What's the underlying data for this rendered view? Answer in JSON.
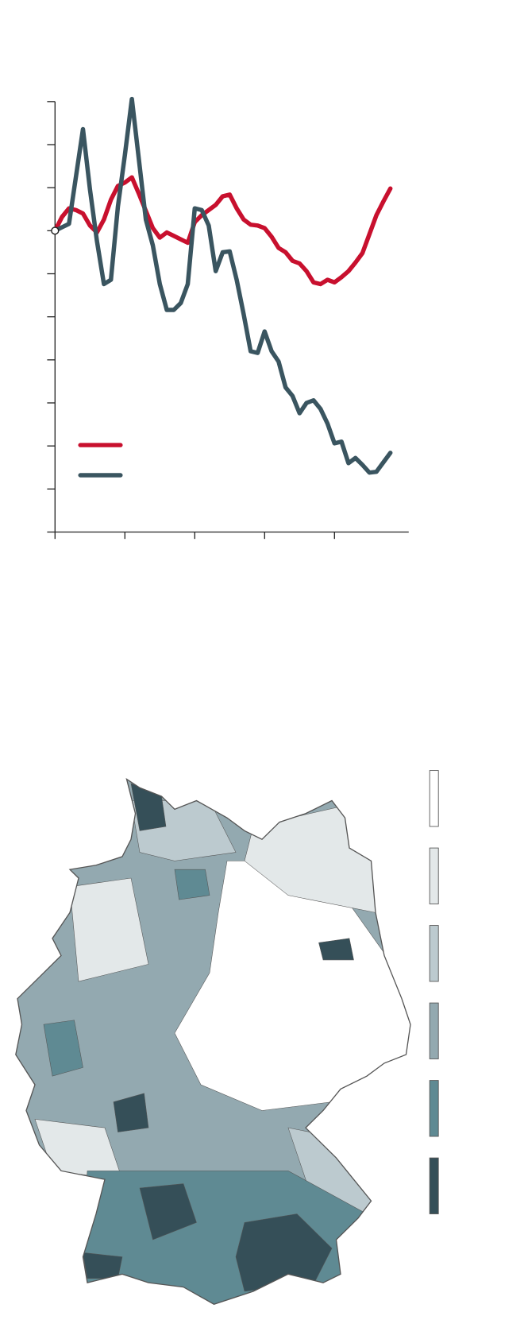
{
  "chart_data": {
    "type": "line",
    "x": [
      0,
      1,
      2,
      3,
      4,
      5,
      6,
      7,
      8,
      9,
      10,
      11,
      12,
      13,
      14,
      15,
      16,
      17,
      18,
      19,
      20,
      21,
      22,
      23,
      24,
      25,
      26,
      27,
      28,
      29,
      30,
      31,
      32,
      33,
      34,
      35,
      36,
      37,
      38,
      39,
      40,
      41,
      42,
      43,
      44,
      45,
      46,
      47,
      48
    ],
    "series": [
      {
        "color": "#c8102e",
        "values": [
          0,
          3.2,
          5.2,
          4.8,
          4,
          1.2,
          -0.4,
          2.6,
          7.2,
          10.4,
          11.2,
          12.4,
          8.6,
          4.6,
          0.6,
          -1.6,
          -0.4,
          -1.2,
          -2,
          -2.8,
          2,
          3.6,
          4.8,
          6,
          8,
          8.4,
          5.2,
          2.6,
          1.4,
          1.2,
          0.6,
          -1.4,
          -4,
          -5,
          -7,
          -7.6,
          -9.4,
          -12,
          -12.4,
          -11.4,
          -12,
          -10.8,
          -9.4,
          -7.4,
          -5.2,
          -0.8,
          3.6,
          6.8,
          9.8
        ]
      },
      {
        "color": "#3a5560",
        "values": [
          0,
          0.8,
          1.6,
          12.6,
          23.6,
          9.6,
          -2.4,
          -12.4,
          -11.4,
          5.6,
          17.6,
          30.6,
          16.6,
          2.6,
          -3.4,
          -12.4,
          -18.4,
          -18.4,
          -16.8,
          -12.4,
          5.2,
          4.8,
          1.2,
          -9.4,
          -5,
          -4.8,
          -11.4,
          -19.4,
          -28,
          -28.4,
          -23.4,
          -28,
          -30.4,
          -36.4,
          -38.4,
          -42.4,
          -40,
          -39.4,
          -41.4,
          -44.8,
          -49.4,
          -49,
          -54,
          -52.8,
          -54.4,
          -56.2,
          -56,
          -53.8,
          -51.6
        ]
      }
    ],
    "xlim": [
      0,
      50
    ],
    "xticks": [
      0,
      10,
      20,
      30,
      40
    ],
    "ylim": [
      -70,
      30
    ],
    "yticks": [
      30,
      20,
      10,
      0,
      -10,
      -20,
      -30,
      -40,
      -50,
      -60,
      -70
    ]
  },
  "map": {
    "legend_colors": [
      "#ffffff",
      "#e3e8e9",
      "#bccacf",
      "#93a9b0",
      "#5f8a93",
      "#354f58"
    ],
    "outline_color": "#555555"
  }
}
